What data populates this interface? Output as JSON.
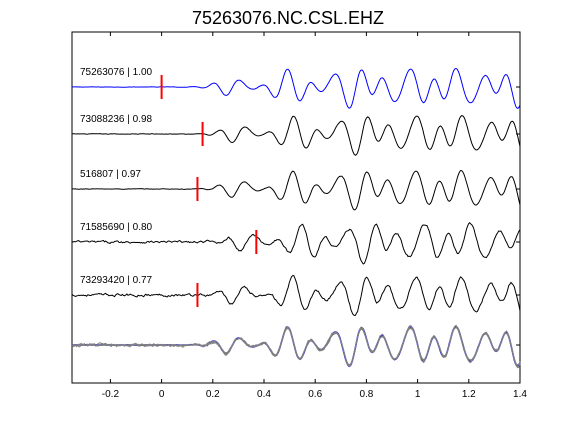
{
  "chart_data": {
    "type": "line",
    "title": "75263076.NC.CSL.EHZ",
    "xlabel": "",
    "ylabel": "",
    "xlim": [
      -0.35,
      1.4
    ],
    "x_ticks": [
      -0.2,
      0,
      0.2,
      0.4,
      0.6,
      0.8,
      1,
      1.2,
      1.4
    ],
    "x_tick_labels": [
      "-0.2",
      "0",
      "0.2",
      "0.4",
      "0.6",
      "0.8",
      "1",
      "1.2",
      "1.4"
    ],
    "grid": false,
    "colors": {
      "template": "#0000ff",
      "trace": "#000000",
      "pick": "#ff0000",
      "overlay": "#808080"
    },
    "traces": [
      {
        "label": "75263076 | 1.00",
        "event_id": "75263076",
        "correlation": 1.0,
        "pick_time": 0.0,
        "template": true
      },
      {
        "label": "73088236 | 0.98",
        "event_id": "73088236",
        "correlation": 0.98,
        "pick_time": 0.16,
        "template": false
      },
      {
        "label": "516807 | 0.97",
        "event_id": "516807",
        "correlation": 0.97,
        "pick_time": 0.14,
        "template": false
      },
      {
        "label": "71585690 | 0.80",
        "event_id": "71585690",
        "correlation": 0.8,
        "pick_time": 0.37,
        "template": false
      },
      {
        "label": "73293420 | 0.77",
        "event_id": "73293420",
        "correlation": 0.77,
        "pick_time": 0.14,
        "template": false
      }
    ],
    "stack": {
      "description_shown": false
    }
  }
}
